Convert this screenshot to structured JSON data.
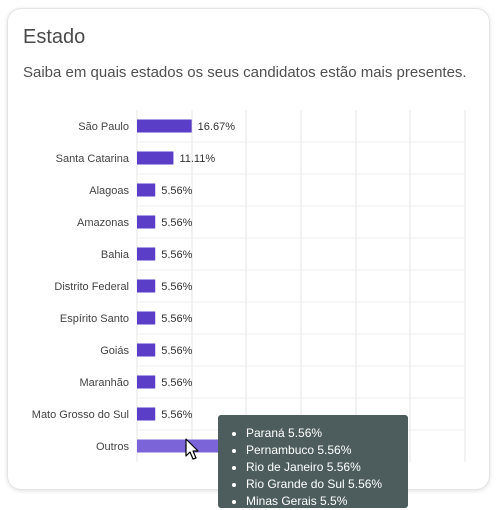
{
  "card": {
    "title": "Estado",
    "subtitle": "Saiba em quais estados os seus candidatos estão mais presentes."
  },
  "chart_data": {
    "type": "bar",
    "orientation": "horizontal",
    "categories": [
      "São Paulo",
      "Santa Catarina",
      "Alagoas",
      "Amazonas",
      "Bahia",
      "Distrito Federal",
      "Espírito Santo",
      "Goiás",
      "Maranhão",
      "Mato Grosso do Sul",
      "Outros"
    ],
    "values": [
      16.67,
      11.11,
      5.56,
      5.56,
      5.56,
      5.56,
      5.56,
      5.56,
      5.56,
      5.56,
      27.77
    ],
    "data_labels": [
      "16.67%",
      "11.11%",
      "5.56%",
      "5.56%",
      "5.56%",
      "5.56%",
      "5.56%",
      "5.56%",
      "5.56%",
      "5.56%",
      ""
    ],
    "xlim": [
      0,
      100
    ],
    "grid": true,
    "bar_color": "#5a3ec8",
    "highlight_color": "#7b63d8",
    "highlighted_category": "Outros"
  },
  "tooltip": {
    "items": [
      "Paraná 5.56%",
      "Pernambuco 5.56%",
      "Rio de Janeiro 5.56%",
      "Rio Grande do Sul 5.56%",
      "Minas Gerais 5.5%"
    ]
  },
  "cursor": {
    "icon": "mouse-pointer-icon"
  }
}
